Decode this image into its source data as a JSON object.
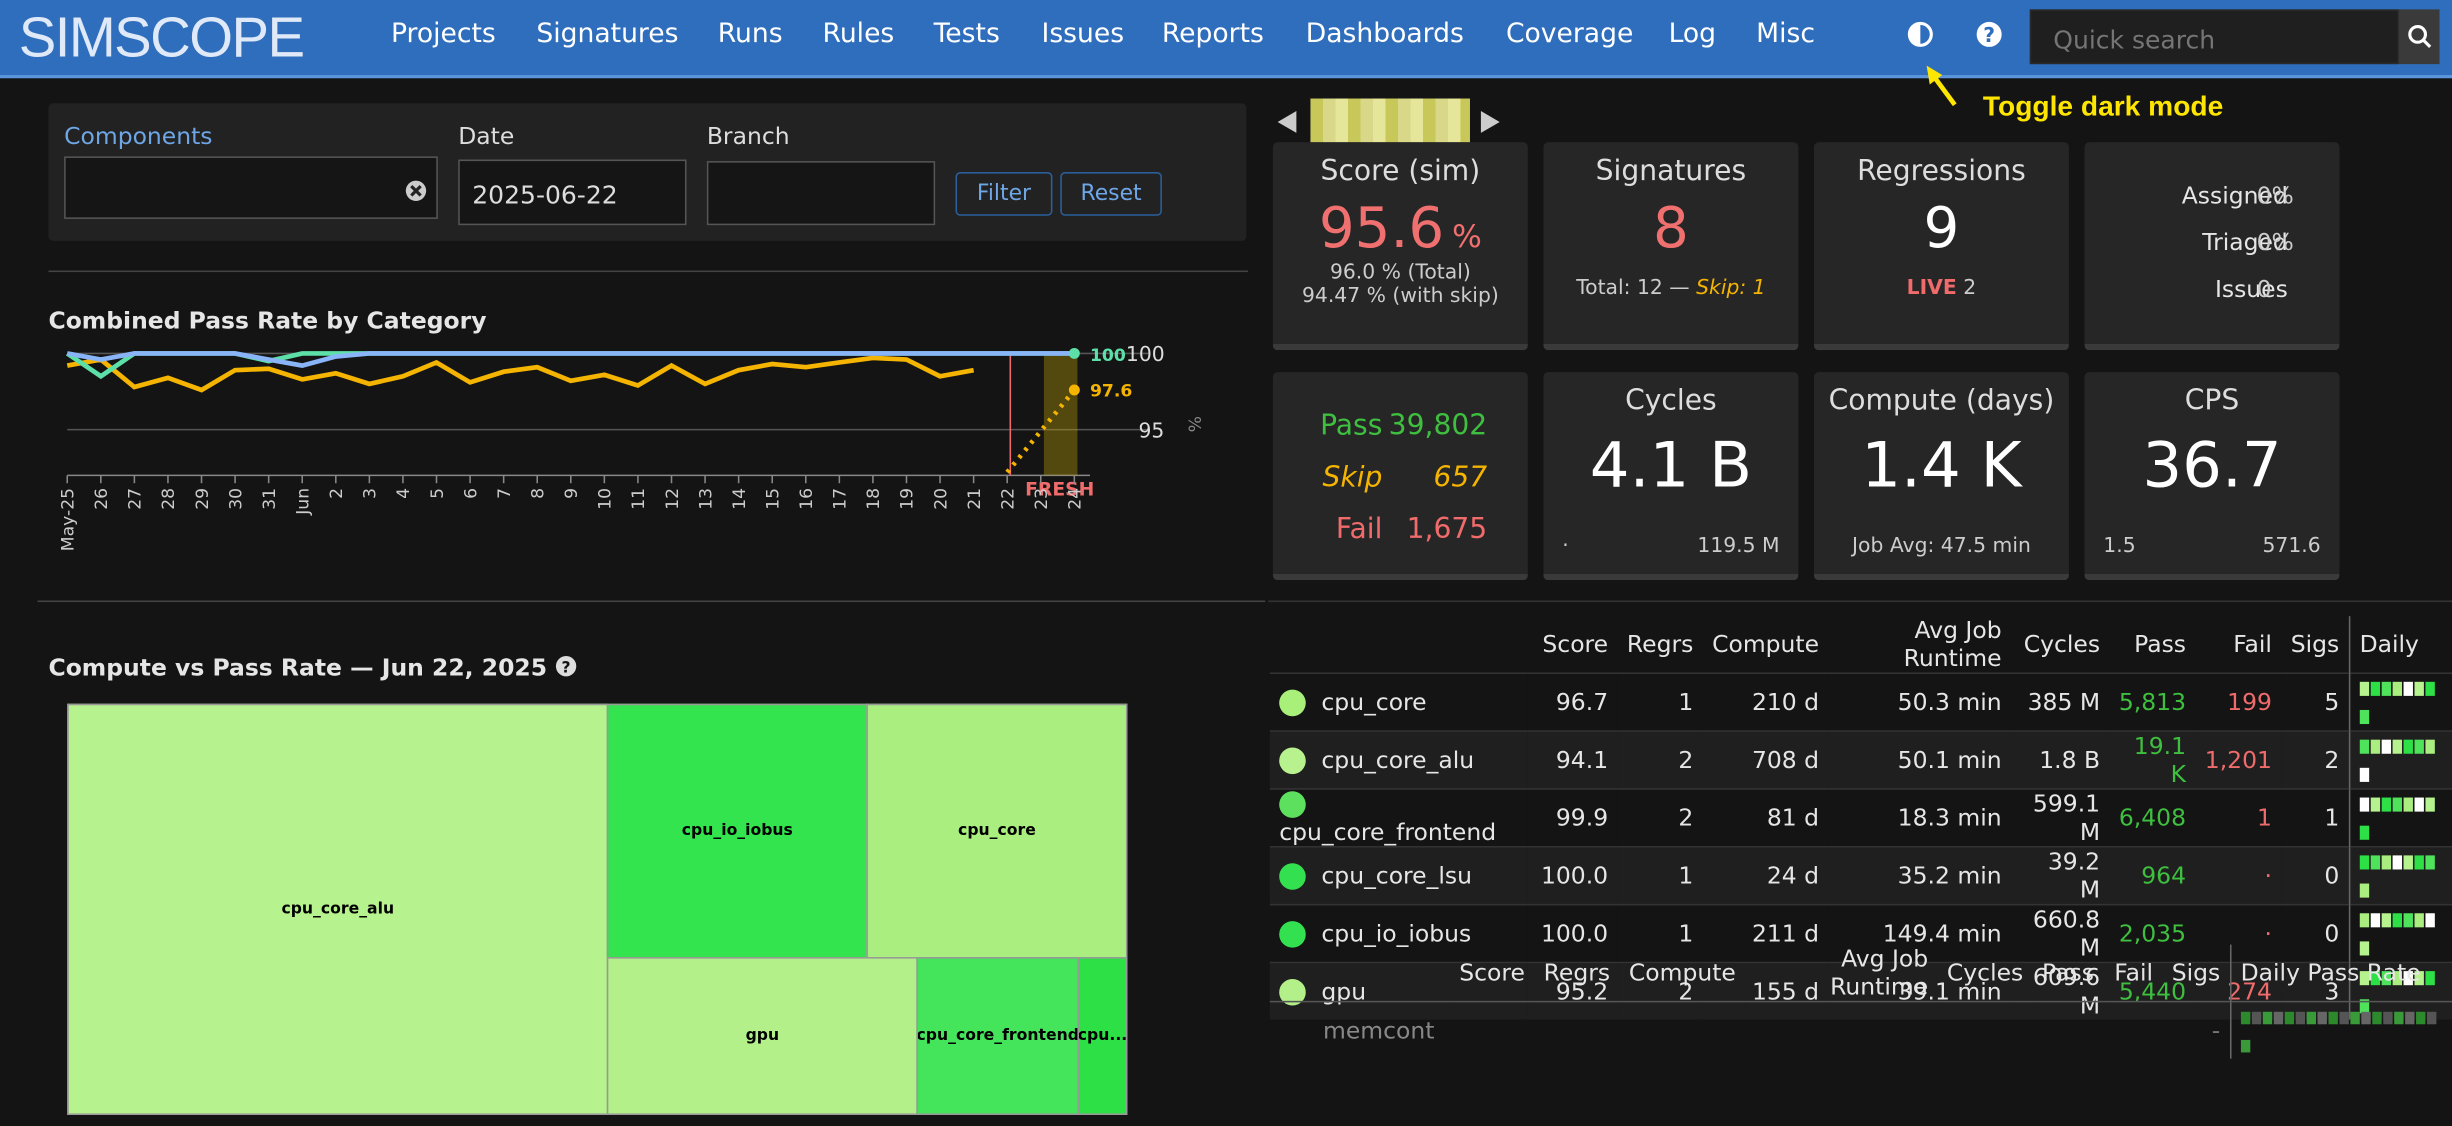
{
  "app": {
    "logo": "SIMSCOPE"
  },
  "nav": {
    "items": [
      "Projects",
      "Signatures",
      "Runs",
      "Rules",
      "Tests",
      "Issues",
      "Reports",
      "Dashboards",
      "Coverage",
      "Log",
      "Misc"
    ],
    "theme_icon": "half-circle-icon",
    "help_icon": "question-icon",
    "search_placeholder": "Quick search",
    "search_icon": "magnifier-icon"
  },
  "hint": {
    "text": "Toggle dark mode"
  },
  "filters": {
    "components_label": "Components",
    "components_value": "",
    "date_label": "Date",
    "date_value": "2025-06-22",
    "branch_label": "Branch",
    "branch_value": "",
    "filter_btn": "Filter",
    "reset_btn": "Reset"
  },
  "chart": {
    "title": "Combined Pass Rate by Category",
    "fresh_label": "FRESH",
    "unit": "%",
    "y_ticks": [
      "100",
      "95"
    ]
  },
  "chart_data": {
    "type": "line",
    "x": [
      "May-25",
      "26",
      "27",
      "28",
      "29",
      "30",
      "31",
      "Jun",
      "2",
      "3",
      "4",
      "5",
      "6",
      "7",
      "8",
      "9",
      "10",
      "11",
      "12",
      "13",
      "14",
      "15",
      "16",
      "17",
      "18",
      "19",
      "20",
      "21",
      "22",
      "23",
      "24"
    ],
    "ylim": [
      92,
      100
    ],
    "series": [
      {
        "color": "#f4b400",
        "values": [
          99.2,
          99.6,
          97.8,
          98.4,
          97.6,
          98.9,
          99.0,
          98.3,
          98.7,
          98.0,
          98.5,
          99.4,
          98.1,
          98.8,
          99.1,
          98.2,
          98.6,
          97.9,
          99.2,
          98.0,
          98.9,
          99.3,
          99.1,
          99.4,
          99.7,
          99.6,
          98.5,
          98.9,
          null,
          null,
          null
        ]
      },
      {
        "color": "#5de0a8",
        "values": [
          100,
          98.5,
          100,
          100,
          100,
          100,
          99.5,
          100,
          100,
          100,
          100,
          100,
          100,
          100,
          100,
          100,
          100,
          100,
          100,
          100,
          100,
          100,
          100,
          100,
          100,
          100,
          100,
          100,
          100,
          100,
          100
        ]
      },
      {
        "color": "#8ab4f8",
        "values": [
          100,
          99.6,
          100,
          100,
          100,
          100,
          99.6,
          99.2,
          99.8,
          100,
          100,
          100,
          100,
          100,
          100,
          100,
          100,
          100,
          100,
          100,
          100,
          100,
          100,
          100,
          100,
          100,
          100,
          100,
          100,
          100,
          100
        ]
      }
    ],
    "end_labels": [
      "100",
      "97.6"
    ]
  },
  "pager": {
    "prev_icon": "triangle-left-icon",
    "next_icon": "triangle-right-icon"
  },
  "cards": {
    "score": {
      "title": "Score (sim)",
      "value": "95.6",
      "unit": "%",
      "total": "96.0 % (Total)",
      "skip": "94.47 % (with skip)"
    },
    "signatures": {
      "title": "Signatures",
      "value": "8",
      "total": "Total: 12 —",
      "skip": "Skip: 1"
    },
    "regressions": {
      "title": "Regressions",
      "value": "9",
      "live_label": "LIVE",
      "live_value": "2"
    },
    "assign": {
      "assigned_label": "Assigned",
      "assigned": "0%",
      "triaged_label": "Triaged",
      "triaged": "0%",
      "issues_label": "Issues",
      "issues": "0"
    },
    "pfs": {
      "pass_label": "Pass",
      "pass": "39,802",
      "skip_label": "Skip",
      "skip": "657",
      "fail_label": "Fail",
      "fail": "1,675"
    },
    "cycles": {
      "title": "Cycles",
      "value": "4.1 B",
      "left": "·",
      "right": "119.5 M"
    },
    "compute": {
      "title": "Compute (days)",
      "value": "1.4 K",
      "sub": "Job Avg: 47.5 min"
    },
    "cps": {
      "title": "CPS",
      "value": "36.7",
      "left": "1.5",
      "right": "571.6"
    }
  },
  "treemap": {
    "title": "Compute vs Pass Rate — Jun 22, 2025",
    "help_icon": "question-circle-icon",
    "cells": [
      "cpu_core_alu",
      "cpu_io_iobus",
      "cpu_core",
      "gpu",
      "cpu_core_frontend",
      "cpu..."
    ]
  },
  "table": {
    "headers": [
      "Score",
      "Regrs",
      "Compute",
      "Avg Job Runtime",
      "Cycles",
      "Pass",
      "Fail",
      "Sigs",
      "Daily"
    ],
    "rows": [
      {
        "name": "cpu_core",
        "score": "96.7",
        "regrs": "1",
        "compute": "210 d",
        "avg": "50.3 min",
        "cycles": "385 M",
        "pass": "5,813",
        "fail": "199",
        "sigs": "5",
        "dot": "#a8f07a"
      },
      {
        "name": "cpu_core_alu",
        "score": "94.1",
        "regrs": "2",
        "compute": "708 d",
        "avg": "50.1 min",
        "cycles": "1.8 B",
        "pass": "19.1 K",
        "fail": "1,201",
        "sigs": "2",
        "dot": "#b8f28e"
      },
      {
        "name": "cpu_core_frontend",
        "score": "99.9",
        "regrs": "2",
        "compute": "81 d",
        "avg": "18.3 min",
        "cycles": "599.1 M",
        "pass": "6,408",
        "fail": "1",
        "sigs": "1",
        "dot": "#5de05d"
      },
      {
        "name": "cpu_core_lsu",
        "score": "100.0",
        "regrs": "1",
        "compute": "24 d",
        "avg": "35.2 min",
        "cycles": "39.2 M",
        "pass": "964",
        "fail": "·",
        "sigs": "0",
        "dot": "#33e04f"
      },
      {
        "name": "cpu_io_iobus",
        "score": "100.0",
        "regrs": "1",
        "compute": "211 d",
        "avg": "149.4 min",
        "cycles": "660.8 M",
        "pass": "2,035",
        "fail": "·",
        "sigs": "0",
        "dot": "#33e04f"
      },
      {
        "name": "gpu",
        "score": "95.2",
        "regrs": "2",
        "compute": "155 d",
        "avg": "39.1 min",
        "cycles": "609.6 M",
        "pass": "5,440",
        "fail": "274",
        "sigs": "3",
        "dot": "#b3f08a"
      }
    ],
    "headers2": [
      "Score",
      "Regrs",
      "Compute",
      "Avg Job Runtime",
      "Cycles",
      "Pass",
      "Fail",
      "Sigs",
      "Daily Pass Rate"
    ],
    "rows2": [
      {
        "name": "memcont",
        "sigs": "-"
      }
    ]
  }
}
